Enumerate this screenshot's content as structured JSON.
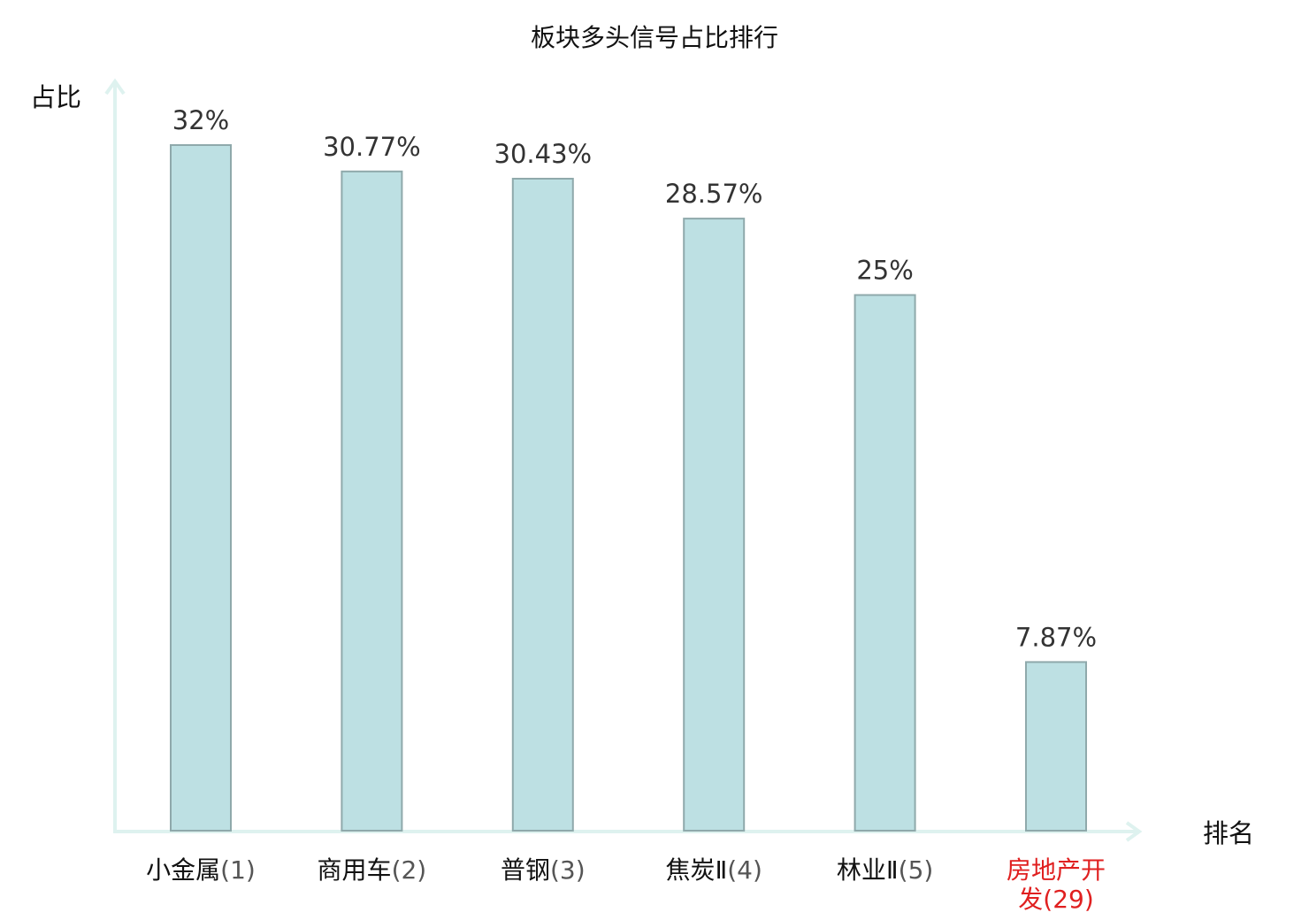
{
  "chart_data": {
    "type": "bar",
    "title": "板块多头信号占比排行",
    "xlabel": "排名",
    "ylabel": "占比",
    "categories": [
      {
        "name": "小金属",
        "rank": "(1)",
        "highlight": false
      },
      {
        "name": "商用车",
        "rank": "(2)",
        "highlight": false
      },
      {
        "name": "普钢",
        "rank": "(3)",
        "highlight": false
      },
      {
        "name": "焦炭Ⅱ",
        "rank": "(4)",
        "highlight": false
      },
      {
        "name": "林业Ⅱ",
        "rank": "(5)",
        "highlight": false
      },
      {
        "name_lines": [
          "房地产开",
          "发"
        ],
        "rank": "(29)",
        "highlight": true
      }
    ],
    "values": [
      32,
      30.77,
      30.43,
      28.57,
      25,
      7.87
    ],
    "value_labels": [
      "32%",
      "30.77%",
      "30.43%",
      "28.57%",
      "25%",
      "7.87%"
    ],
    "unit": "%",
    "ylim": [
      0,
      32
    ],
    "grid": false,
    "colors": {
      "bar_fill": "#bde0e3",
      "bar_stroke": "#8fa9ab",
      "axis": "#def2ef",
      "highlight_text": "#e02020",
      "text": "#111111",
      "value_text": "#333333",
      "rank_text": "#555555"
    }
  }
}
